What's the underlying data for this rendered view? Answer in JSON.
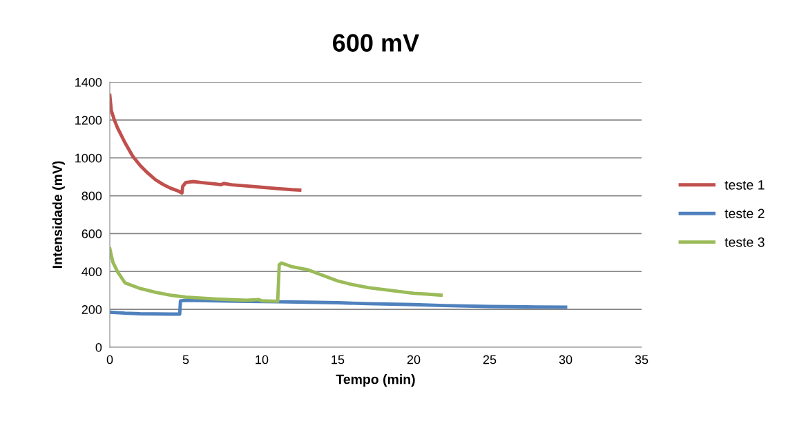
{
  "chart_data": {
    "type": "line",
    "title": "600 mV",
    "xlabel": "Tempo (min)",
    "ylabel": "Intensidade (mV)",
    "xlim": [
      0,
      35
    ],
    "xticks": [
      0,
      5,
      10,
      15,
      20,
      25,
      30,
      35
    ],
    "ylim": [
      0,
      1400
    ],
    "yticks": [
      0,
      200,
      400,
      600,
      800,
      1000,
      1200,
      1400
    ],
    "grid": "y",
    "legend": "right",
    "marker": "none",
    "line_style": "solid",
    "series": [
      {
        "name": "teste 1",
        "color": "#c0504d",
        "x": [
          0,
          0.1,
          0.3,
          0.5,
          1,
          1.5,
          2,
          2.5,
          3,
          3.5,
          4,
          4.5,
          4.75,
          4.8,
          5,
          5.5,
          6,
          7,
          7.3,
          7.5,
          8,
          9,
          10,
          11,
          12,
          12.5
        ],
        "values": [
          1330,
          1250,
          1200,
          1160,
          1080,
          1010,
          960,
          920,
          885,
          860,
          840,
          825,
          815,
          850,
          870,
          875,
          870,
          862,
          858,
          865,
          858,
          852,
          845,
          838,
          832,
          830
        ]
      },
      {
        "name": "teste 2",
        "color": "#4f81bd",
        "x": [
          0,
          1,
          2,
          3,
          4,
          4.6,
          4.65,
          5,
          7,
          9,
          11,
          13,
          15,
          17,
          20,
          22,
          25,
          28,
          30
        ],
        "values": [
          185,
          180,
          177,
          176,
          175,
          175,
          245,
          248,
          245,
          242,
          240,
          238,
          235,
          230,
          225,
          220,
          215,
          213,
          212
        ]
      },
      {
        "name": "teste 3",
        "color": "#9bbb59",
        "x": [
          0,
          0.2,
          0.5,
          1,
          2,
          3,
          4,
          5,
          7,
          9,
          9.8,
          10,
          11.05,
          11.15,
          11.3,
          12,
          13,
          14,
          15,
          16,
          17,
          18,
          19,
          20,
          21,
          21.8
        ],
        "values": [
          520,
          450,
          400,
          340,
          310,
          290,
          275,
          265,
          255,
          248,
          252,
          245,
          243,
          435,
          445,
          425,
          410,
          380,
          350,
          330,
          315,
          305,
          295,
          285,
          280,
          275
        ]
      }
    ]
  }
}
